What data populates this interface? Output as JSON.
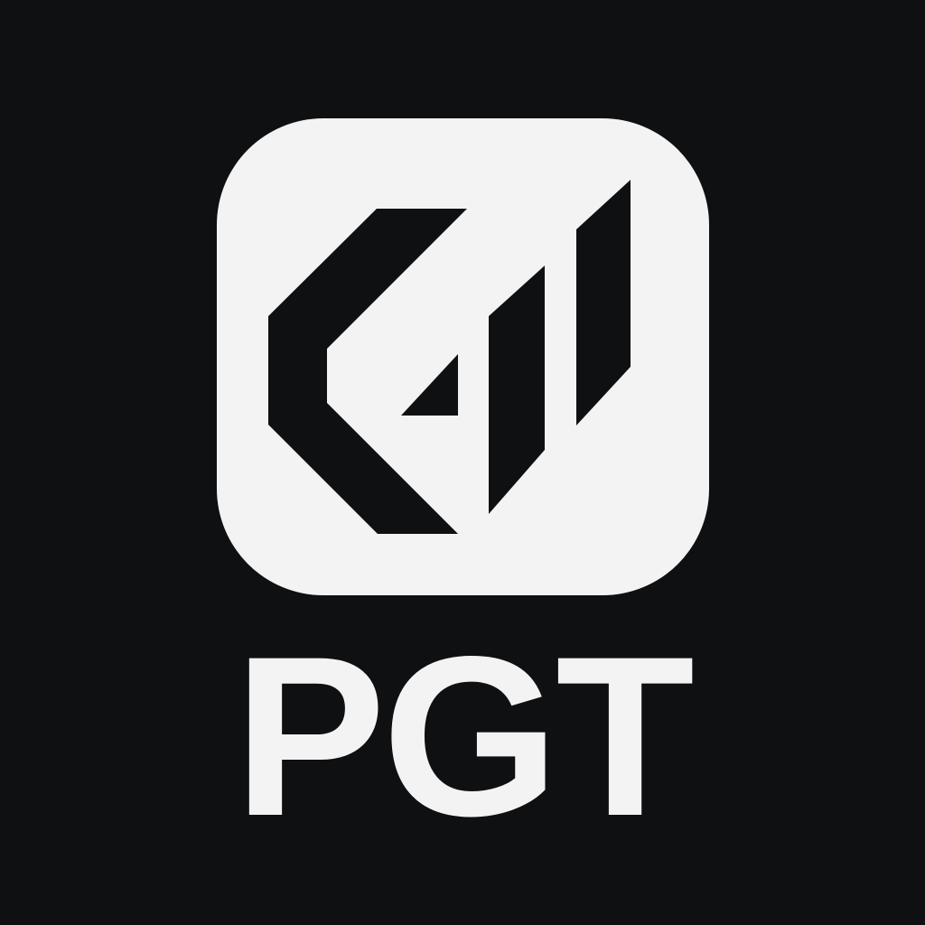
{
  "brand": {
    "name": "PGT",
    "icon": "pgt-geometric-logo-icon",
    "colors": {
      "background": "#0f1012",
      "foreground": "#f3f3f3",
      "mark": "#0f1012"
    }
  }
}
